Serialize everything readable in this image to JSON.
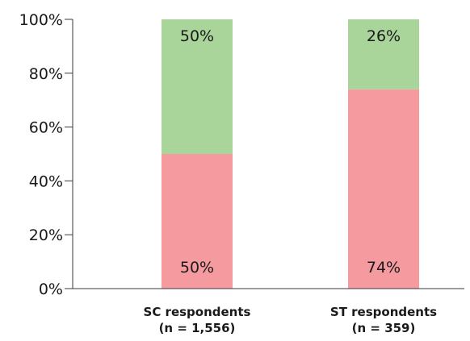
{
  "chart_data": {
    "type": "bar",
    "stacked": true,
    "categories": [
      [
        "SC respondents",
        "(n = 1,556)"
      ],
      [
        "ST respondents",
        "(n = 359)"
      ]
    ],
    "series": [
      {
        "color": "#f59ba0",
        "values": [
          50,
          74
        ],
        "labels": [
          "50%",
          "74%"
        ]
      },
      {
        "color": "#a9d59a",
        "values": [
          50,
          26
        ],
        "labels": [
          "50%",
          "26%"
        ]
      }
    ],
    "ylim": [
      0,
      100
    ],
    "yticks": [
      0,
      20,
      40,
      60,
      80,
      100
    ],
    "ytick_labels": [
      "0%",
      "20%",
      "40%",
      "60%",
      "80%",
      "100%"
    ],
    "grid": false,
    "legend": "none"
  }
}
